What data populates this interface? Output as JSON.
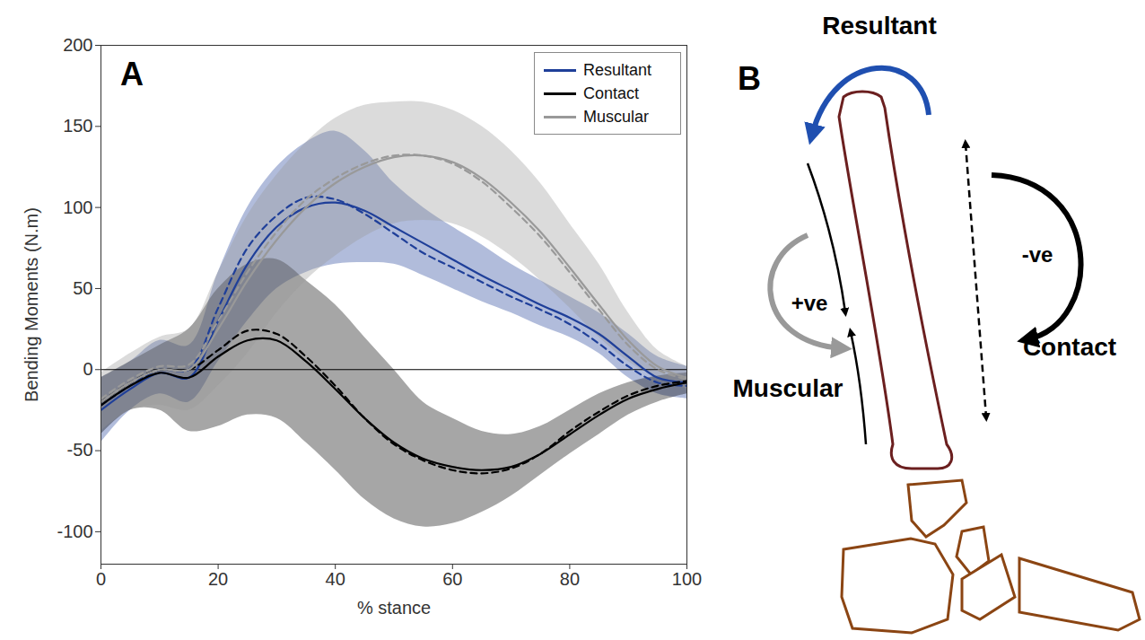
{
  "chart_data": {
    "type": "line",
    "panel_label": "A",
    "x_label": "% stance",
    "y_label": "Bending Moments (N.m)",
    "x": [
      0,
      5,
      10,
      15,
      20,
      25,
      30,
      35,
      40,
      45,
      50,
      55,
      60,
      65,
      70,
      75,
      80,
      85,
      90,
      95,
      100
    ],
    "xlim": [
      0,
      100
    ],
    "xticks": [
      0,
      20,
      40,
      60,
      80,
      100
    ],
    "ylim": [
      -120,
      200
    ],
    "yticks": [
      -100,
      -50,
      0,
      50,
      100,
      150,
      200
    ],
    "reference_y": 0,
    "grid": false,
    "legend": "top-right",
    "series": [
      {
        "name": "Resultant",
        "color": "#1f3f99",
        "values": [
          -25,
          -12,
          -2,
          -5,
          30,
          65,
          88,
          100,
          103,
          98,
          88,
          78,
          68,
          58,
          49,
          40,
          32,
          22,
          8,
          -5,
          -8
        ],
        "values_dashed": [
          -22,
          -10,
          0,
          0,
          38,
          75,
          95,
          106,
          105,
          96,
          84,
          72,
          63,
          54,
          45,
          37,
          28,
          16,
          2,
          -8,
          -10
        ],
        "lower": [
          -45,
          -25,
          -15,
          -20,
          5,
          30,
          50,
          60,
          65,
          66,
          65,
          58,
          50,
          42,
          35,
          27,
          20,
          10,
          -5,
          -15,
          -18
        ],
        "upper": [
          -5,
          5,
          18,
          15,
          60,
          100,
          125,
          140,
          147,
          135,
          115,
          100,
          88,
          77,
          65,
          55,
          45,
          35,
          22,
          8,
          2
        ]
      },
      {
        "name": "Contact",
        "color": "#000000",
        "values": [
          -22,
          -10,
          -2,
          -5,
          8,
          18,
          18,
          5,
          -12,
          -30,
          -45,
          -55,
          -60,
          -62,
          -60,
          -52,
          -40,
          -28,
          -18,
          -12,
          -8
        ],
        "values_dashed": [
          -20,
          -8,
          0,
          0,
          12,
          24,
          22,
          8,
          -10,
          -30,
          -46,
          -56,
          -62,
          -64,
          -61,
          -52,
          -38,
          -26,
          -16,
          -10,
          -7
        ],
        "lower": [
          -40,
          -25,
          -25,
          -38,
          -35,
          -28,
          -30,
          -45,
          -62,
          -80,
          -92,
          -97,
          -95,
          -88,
          -78,
          -65,
          -52,
          -40,
          -28,
          -20,
          -15
        ],
        "upper": [
          -5,
          5,
          15,
          25,
          50,
          65,
          68,
          55,
          40,
          20,
          0,
          -20,
          -30,
          -38,
          -40,
          -35,
          -25,
          -15,
          -8,
          -4,
          -2
        ]
      },
      {
        "name": "Muscular",
        "color": "#999999",
        "values": [
          -20,
          -8,
          0,
          0,
          25,
          55,
          80,
          100,
          115,
          125,
          131,
          132,
          128,
          118,
          103,
          85,
          63,
          40,
          18,
          2,
          -5
        ],
        "values_dashed": [
          -18,
          -6,
          2,
          3,
          30,
          60,
          85,
          105,
          118,
          127,
          132,
          132,
          127,
          116,
          100,
          82,
          60,
          37,
          15,
          0,
          -6
        ],
        "lower": [
          -38,
          -25,
          -22,
          -25,
          -10,
          10,
          35,
          55,
          70,
          82,
          90,
          92,
          90,
          82,
          70,
          55,
          38,
          20,
          5,
          -5,
          -12
        ],
        "upper": [
          -2,
          10,
          20,
          25,
          60,
          95,
          120,
          140,
          155,
          163,
          165,
          165,
          160,
          150,
          135,
          115,
          90,
          65,
          35,
          12,
          2
        ]
      }
    ]
  },
  "diagram": {
    "panel_label": "B",
    "resultant": "Resultant",
    "positive": "+ve",
    "negative": "-ve",
    "contact": "Contact",
    "muscular": "Muscular"
  }
}
